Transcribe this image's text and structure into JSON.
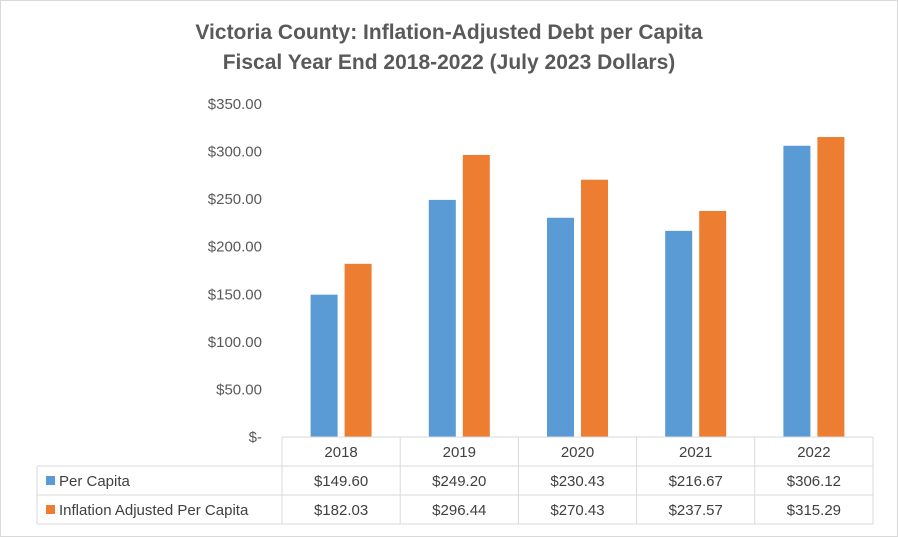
{
  "chart_data": {
    "type": "bar",
    "title": "Victoria County: Inflation-Adjusted Debt per Capita",
    "subtitle": "Fiscal Year End 2018-2022 (July 2023 Dollars)",
    "categories": [
      "2018",
      "2019",
      "2020",
      "2021",
      "2022"
    ],
    "series": [
      {
        "name": "Per Capita",
        "values": [
          149.6,
          249.2,
          230.43,
          216.67,
          306.12
        ],
        "labels": [
          "$149.60",
          "$249.20",
          "$230.43",
          "$216.67",
          "$306.12"
        ],
        "color": "#5b9bd5"
      },
      {
        "name": "Inflation Adjusted Per Capita",
        "values": [
          182.03,
          296.44,
          270.43,
          237.57,
          315.29
        ],
        "labels": [
          "$182.03",
          "$296.44",
          "$270.43",
          "$237.57",
          "$315.29"
        ],
        "color": "#ed7d31"
      }
    ],
    "ylim": [
      0,
      350
    ],
    "ytick_values": [
      0,
      50,
      100,
      150,
      200,
      250,
      300,
      350
    ],
    "ytick_labels": [
      "$-",
      "$50.00",
      "$100.00",
      "$150.00",
      "$200.00",
      "$250.00",
      "$300.00",
      "$350.00"
    ],
    "grid": false,
    "legend": "data-table",
    "xlabel": "",
    "ylabel": ""
  }
}
